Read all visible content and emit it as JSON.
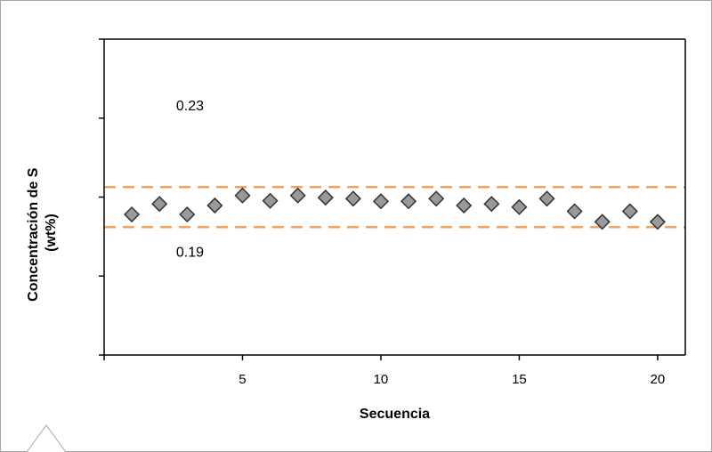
{
  "chart_data": {
    "type": "scatter",
    "title": "",
    "xlabel": "Secuencia",
    "ylabel_lines": [
      "Concentración de S",
      "(wt%)"
    ],
    "x_ticks": [
      5,
      10,
      15,
      20
    ],
    "xlim": [
      0,
      21
    ],
    "series": [
      {
        "marker": "diamond",
        "color": "#999999",
        "x": [
          1,
          2,
          3,
          4,
          5,
          6,
          7,
          8,
          9,
          10,
          11,
          12,
          13,
          14,
          15,
          16,
          17,
          18,
          19,
          20
        ],
        "y": [
          0.2067,
          0.2087,
          0.2067,
          0.2084,
          0.2103,
          0.2093,
          0.2103,
          0.2099,
          0.2097,
          0.2092,
          0.2092,
          0.2097,
          0.2084,
          0.2087,
          0.2081,
          0.2097,
          0.2073,
          0.2053,
          0.2073,
          0.2053
        ]
      }
    ],
    "reference_lines": [
      {
        "y": 0.2119,
        "color": "#f4a15a",
        "style": "dashed"
      },
      {
        "y": 0.2043,
        "color": "#f4a15a",
        "style": "dashed"
      }
    ],
    "annotations": [
      {
        "text": "0.23",
        "x": 2.6,
        "y": 0.2265
      },
      {
        "text": "0.19",
        "x": 2.6,
        "y": 0.1987
      }
    ],
    "ylim": [
      0.18,
      0.24
    ],
    "grid": false
  }
}
